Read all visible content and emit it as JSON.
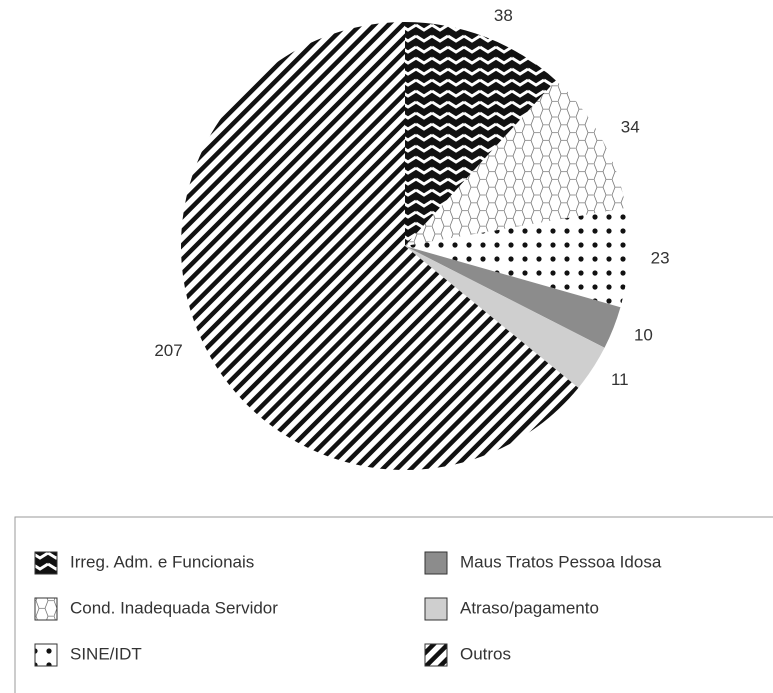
{
  "chart_data": {
    "type": "pie",
    "categories": [
      "Irreg. Adm. e Funcionais",
      "Cond. Inadequada Servidor",
      "SINE/IDT",
      "Maus Tratos Pessoa Idosa",
      "Atraso/pagamento",
      "Outros"
    ],
    "values": [
      38,
      34,
      23,
      10,
      11,
      207
    ],
    "colors": [
      "#111111",
      "#777777",
      "#111111",
      "#8c8c8c",
      "#cfcfcf",
      "#111111"
    ],
    "patterns": [
      "zigzag",
      "hexagon",
      "dots",
      "solid",
      "solid",
      "stripes"
    ]
  }
}
